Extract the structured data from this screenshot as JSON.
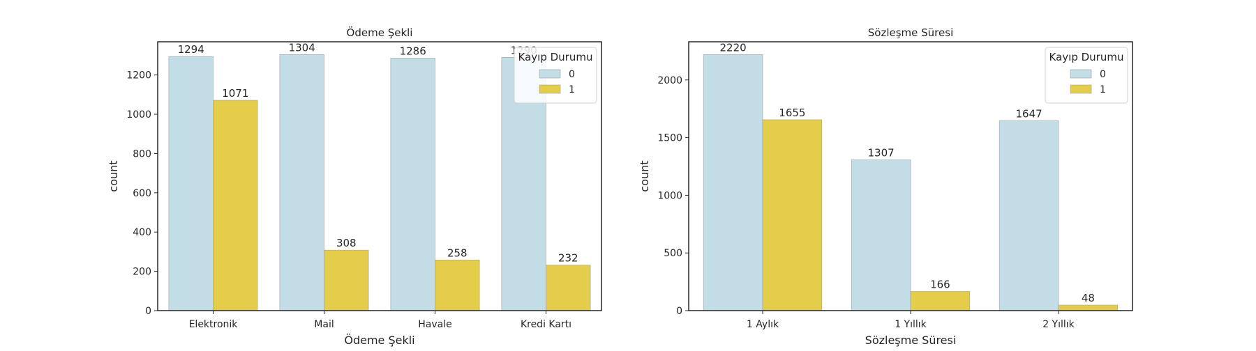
{
  "colors": {
    "series0": "#c2dde6",
    "series1": "#e5cd4c",
    "bar_edge": "#a0a0a0",
    "axis": "#262626"
  },
  "chart_data": [
    {
      "type": "bar",
      "title": "Ödeme Şekli",
      "xlabel": "Ödeme Şekli",
      "ylabel": "count",
      "categories": [
        "Elektronik",
        "Mail",
        "Havale",
        "Kredi Kartı"
      ],
      "series": [
        {
          "name": "0",
          "values": [
            1294,
            1304,
            1286,
            1290
          ]
        },
        {
          "name": "1",
          "values": [
            1071,
            308,
            258,
            232
          ]
        }
      ],
      "ylim": [
        0,
        1369
      ],
      "yticks": [
        0,
        200,
        400,
        600,
        800,
        1000,
        1200
      ],
      "legend": {
        "title": "Kayıp Durumu",
        "placement": "top-right"
      },
      "grid": false
    },
    {
      "type": "bar",
      "title": "Sözleşme Süresi",
      "xlabel": "Sözleşme Süresi",
      "ylabel": "count",
      "categories": [
        "1 Aylık",
        "1 Yıllık",
        "2 Yıllık"
      ],
      "series": [
        {
          "name": "0",
          "values": [
            2220,
            1307,
            1647
          ]
        },
        {
          "name": "1",
          "values": [
            1655,
            166,
            48
          ]
        }
      ],
      "ylim": [
        0,
        2331
      ],
      "yticks": [
        0,
        500,
        1000,
        1500,
        2000
      ],
      "legend": {
        "title": "Kayıp Durumu",
        "placement": "top-right"
      },
      "grid": false
    }
  ]
}
